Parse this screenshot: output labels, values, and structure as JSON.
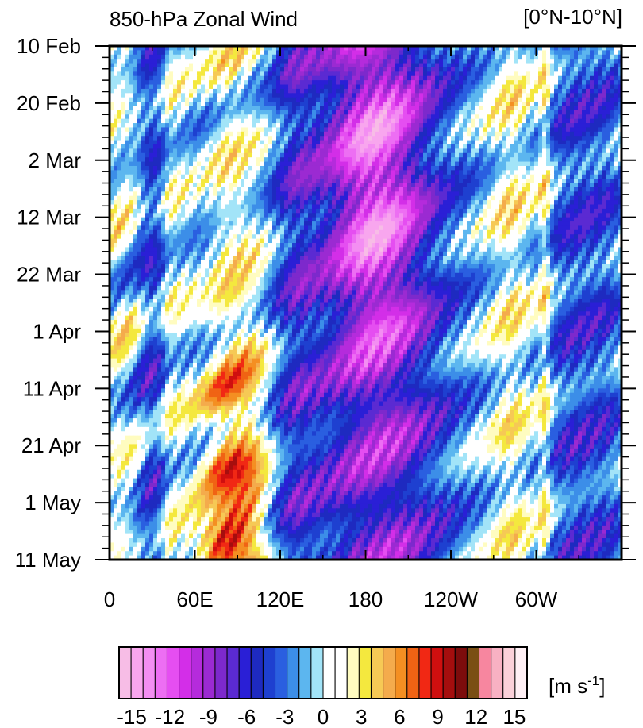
{
  "chart_data": {
    "type": "heatmap",
    "title": "850-hPa Zonal Wind",
    "region_label": "[0°N-10°N]",
    "x_ticks": [
      "0",
      "60E",
      "120E",
      "180",
      "120W",
      "60W"
    ],
    "y_ticks": [
      "10 Feb",
      "20 Feb",
      "2 Mar",
      "12 Mar",
      "22 Mar",
      "1 Apr",
      "11 Apr",
      "21 Apr",
      "1 May",
      "11 May"
    ],
    "x_range_deg_east": [
      0,
      360
    ],
    "y_range_days_after_10_feb": [
      0,
      90
    ],
    "colorbar": {
      "unit": "[m s-1]",
      "unit_base": "[m s",
      "unit_exp": "-1",
      "unit_close": "]",
      "tick_labels": [
        "-15",
        "-12",
        "-9",
        "-6",
        "-3",
        "0",
        "3",
        "6",
        "9",
        "12",
        "15"
      ],
      "levels_min": -16,
      "levels_max": 16,
      "colors": [
        "#f7bde6",
        "#f8a6ee",
        "#f38ef2",
        "#ed6ef3",
        "#e54ef1",
        "#d32ee8",
        "#b52bdc",
        "#9b2ad2",
        "#7d29cc",
        "#5b2ad2",
        "#2a1fd6",
        "#1e2ac0",
        "#1e40d0",
        "#2a5fe0",
        "#3c8ee8",
        "#5cb6ef",
        "#a2e4f8",
        "#ffffff",
        "#ffffff",
        "#fffcc0",
        "#f4e83e",
        "#f6c955",
        "#f4ab4c",
        "#f48f22",
        "#f06314",
        "#f12814",
        "#cf0f0f",
        "#a50e0e",
        "#7d0c0c",
        "#7a4f14",
        "#f7869f",
        "#f8b1c3",
        "#fbd0d9",
        "#fff0f5"
      ]
    },
    "grid": false,
    "legend": "bottom colorbar"
  }
}
